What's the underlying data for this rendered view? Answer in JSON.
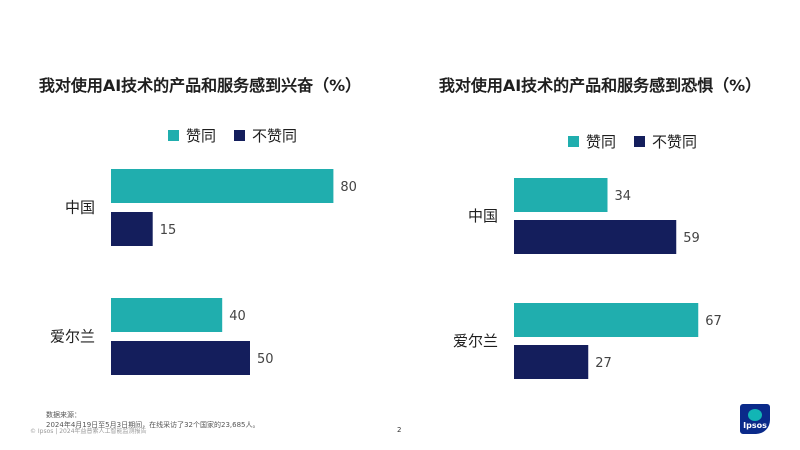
{
  "colors": {
    "agree": "#20aeae",
    "disagree": "#141e5c"
  },
  "legend": {
    "agree": "赞同",
    "disagree": "不赞同"
  },
  "chart_data": [
    {
      "type": "bar",
      "orientation": "horizontal",
      "title": "我对使用AI技术的产品和服务感到兴奋（%）",
      "categories": [
        "中国",
        "爱尔兰"
      ],
      "series": [
        {
          "name": "赞同",
          "values": [
            80,
            40
          ]
        },
        {
          "name": "不赞同",
          "values": [
            15,
            50
          ]
        }
      ],
      "xlim": [
        0,
        100
      ]
    },
    {
      "type": "bar",
      "orientation": "horizontal",
      "title": "我对使用AI技术的产品和服务感到恐惧（%）",
      "categories": [
        "中国",
        "爱尔兰"
      ],
      "series": [
        {
          "name": "赞同",
          "values": [
            34,
            67
          ]
        },
        {
          "name": "不赞同",
          "values": [
            59,
            27
          ]
        }
      ],
      "xlim": [
        0,
        100
      ]
    }
  ],
  "footer": {
    "source_label": "数据来源：",
    "source_text": "2024年4月19日至5月3日期间，在线采访了32个国家的23,685人。",
    "copyright": "© Ipsos | 2024年益普索人工智能监测报告",
    "page_number": "2",
    "logo_text": "Ipsos"
  }
}
